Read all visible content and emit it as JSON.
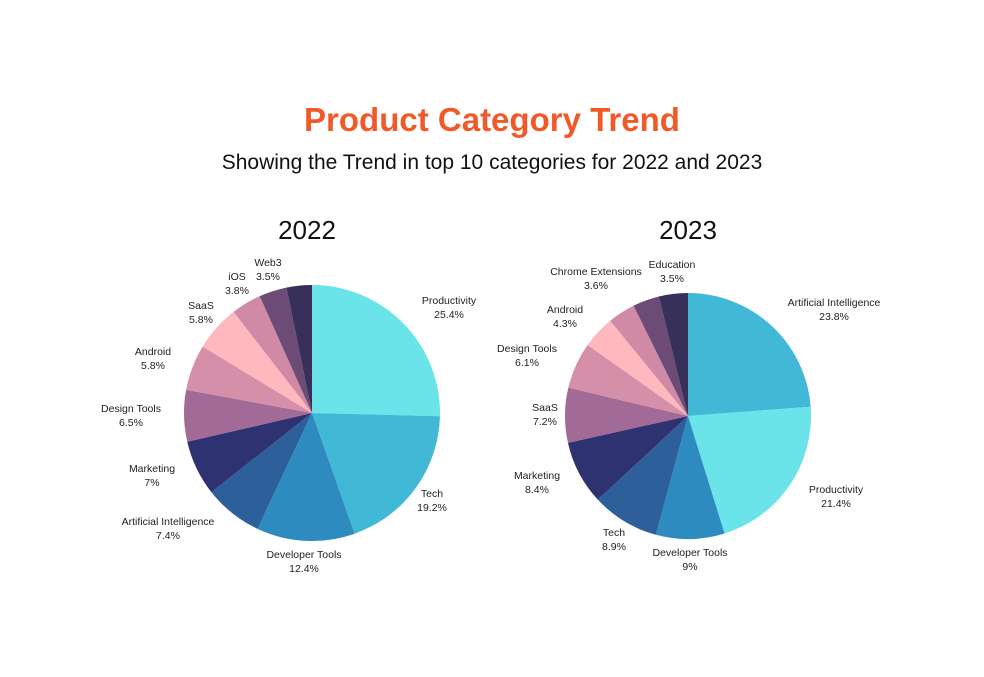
{
  "header": {
    "title": "Product Category Trend",
    "subtitle": "Showing the Trend in top 10 categories for 2022 and 2023"
  },
  "colors": {
    "title": "#f05a28"
  },
  "chart_data": [
    {
      "type": "pie",
      "title": "2022",
      "start": "12 o'clock",
      "direction": "clockwise",
      "slices": [
        {
          "label": "Productivity",
          "value": 25.4,
          "display": "25.4%",
          "color": "#6ae4e9"
        },
        {
          "label": "Tech",
          "value": 19.2,
          "display": "19.2%",
          "color": "#41b8d5"
        },
        {
          "label": "Developer Tools",
          "value": 12.4,
          "display": "12.4%",
          "color": "#2e8bc0"
        },
        {
          "label": "Artificial Intelligence",
          "value": 7.4,
          "display": "7.4%",
          "color": "#2d5f9a"
        },
        {
          "label": "Marketing",
          "value": 7,
          "display": "7%",
          "color": "#2f3270"
        },
        {
          "label": "Design Tools",
          "value": 6.5,
          "display": "6.5%",
          "color": "#a26b97"
        },
        {
          "label": "Android",
          "value": 5.8,
          "display": "5.8%",
          "color": "#d58fa8"
        },
        {
          "label": "SaaS",
          "value": 5.8,
          "display": "5.8%",
          "color": "#ffb8bd"
        },
        {
          "label": "iOS",
          "value": 3.8,
          "display": "3.8%",
          "color": "#d08aa6"
        },
        {
          "label": "Web3",
          "value": 3.5,
          "display": "3.5%",
          "color": "#6c4b76"
        },
        {
          "label": "",
          "value": 3.2,
          "display": "",
          "color": "#36305a"
        }
      ]
    },
    {
      "type": "pie",
      "title": "2023",
      "start": "12 o'clock",
      "direction": "clockwise",
      "slices": [
        {
          "label": "Artificial Intelligence",
          "value": 23.8,
          "display": "23.8%",
          "color": "#41b8d5"
        },
        {
          "label": "Productivity",
          "value": 21.4,
          "display": "21.4%",
          "color": "#6ae4e9"
        },
        {
          "label": "Developer Tools",
          "value": 9,
          "display": "9%",
          "color": "#2e8bc0"
        },
        {
          "label": "Tech",
          "value": 8.9,
          "display": "8.9%",
          "color": "#2d5f9a"
        },
        {
          "label": "Marketing",
          "value": 8.4,
          "display": "8.4%",
          "color": "#2f3270"
        },
        {
          "label": "SaaS",
          "value": 7.2,
          "display": "7.2%",
          "color": "#a26b97"
        },
        {
          "label": "Design Tools",
          "value": 6.1,
          "display": "6.1%",
          "color": "#d58fa8"
        },
        {
          "label": "Android",
          "value": 4.3,
          "display": "4.3%",
          "color": "#ffb8bd"
        },
        {
          "label": "Chrome Extensions",
          "value": 3.6,
          "display": "3.6%",
          "color": "#d08aa6"
        },
        {
          "label": "Education",
          "value": 3.5,
          "display": "3.5%",
          "color": "#6c4b76"
        },
        {
          "label": "",
          "value": 3.8,
          "display": "",
          "color": "#36305a"
        }
      ]
    }
  ]
}
